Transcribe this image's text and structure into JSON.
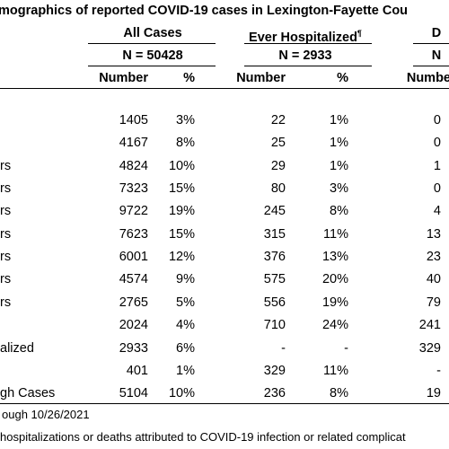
{
  "title": "mographics of reported COVID-19 cases in Lexington-Fayette Cou",
  "column_groups": [
    {
      "label": "All Cases",
      "n": "N = 50428"
    },
    {
      "label": "Ever Hospitalized",
      "mark": "¶",
      "n": "N = 2933"
    },
    {
      "label": "D",
      "n": "N"
    }
  ],
  "subheaders": [
    "Number",
    "%",
    "Number",
    "%",
    "Numbe"
  ],
  "rows": [
    [
      "",
      "1405",
      "3%",
      "22",
      "1%",
      "0"
    ],
    [
      "",
      "4167",
      "8%",
      "25",
      "1%",
      "0"
    ],
    [
      "rs",
      "4824",
      "10%",
      "29",
      "1%",
      "1"
    ],
    [
      "rs",
      "7323",
      "15%",
      "80",
      "3%",
      "0"
    ],
    [
      "rs",
      "9722",
      "19%",
      "245",
      "8%",
      "4"
    ],
    [
      "rs",
      "7623",
      "15%",
      "315",
      "11%",
      "13"
    ],
    [
      "rs",
      "6001",
      "12%",
      "376",
      "13%",
      "23"
    ],
    [
      "rs",
      "4574",
      "9%",
      "575",
      "20%",
      "40"
    ],
    [
      "rs",
      "2765",
      "5%",
      "556",
      "19%",
      "79"
    ],
    [
      "",
      "2024",
      "4%",
      "710",
      "24%",
      "241"
    ],
    [
      "alized",
      "2933",
      "6%",
      "-",
      "-",
      "329"
    ],
    [
      "",
      "401",
      "1%",
      "329",
      "11%",
      "-"
    ],
    [
      "gh Cases",
      "5104",
      "10%",
      "236",
      "8%",
      "19"
    ]
  ],
  "footnotes": [
    "ough 10/26/2021",
    "hospitalizations or deaths attributed to COVID-19 infection or related complicat"
  ]
}
